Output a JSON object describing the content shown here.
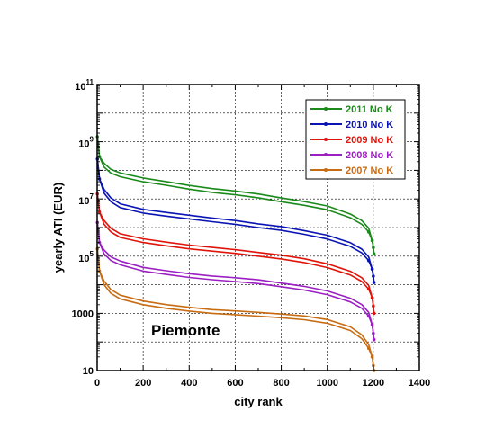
{
  "chart_data": {
    "type": "line",
    "title": "",
    "xlabel": "city  rank",
    "ylabel": "yearly  ATI  (EUR)",
    "xlim": [
      0,
      1400
    ],
    "ylim_log10": [
      1,
      11
    ],
    "yscale": "log",
    "grid": true,
    "legend_position": "top-right",
    "annotation": "Piemonte",
    "x_ticks": [
      "0",
      "200",
      "400",
      "600",
      "800",
      "1000",
      "1200",
      "1400"
    ],
    "y_ticks": [
      {
        "exp": 1,
        "label": "10"
      },
      {
        "exp": 3,
        "label": "1000"
      },
      {
        "exp": 5,
        "base": "10",
        "sup": "5"
      },
      {
        "exp": 7,
        "base": "10",
        "sup": "7"
      },
      {
        "exp": 9,
        "base": "10",
        "sup": "9"
      },
      {
        "exp": 11,
        "base": "10",
        "sup": "11"
      }
    ],
    "series": [
      {
        "name": "2011 No K",
        "color": "#1a8a1a",
        "x": [
          1,
          10,
          30,
          60,
          100,
          200,
          300,
          400,
          500,
          600,
          700,
          800,
          900,
          1000,
          1100,
          1150,
          1180,
          1195,
          1200,
          1203
        ],
        "y": [
          1500000000.0,
          300000000.0,
          130000000.0,
          80000000.0,
          60000000.0,
          40000000.0,
          30000000.0,
          22000000.0,
          17000000.0,
          14000000.0,
          11000000.0,
          8000000.0,
          6000000.0,
          4200000.0,
          2200000.0,
          1300000.0,
          700000.0,
          350000.0,
          200000.0,
          120000.0
        ]
      },
      {
        "name": "2010 No K",
        "color": "#0a14b4",
        "x": [
          1,
          10,
          30,
          60,
          100,
          200,
          300,
          400,
          500,
          600,
          700,
          800,
          900,
          1000,
          1100,
          1150,
          1180,
          1195,
          1200,
          1203
        ],
        "y": [
          250000000.0,
          50000000.0,
          16000000.0,
          8000000.0,
          5000000.0,
          3200000.0,
          2500000.0,
          2000000.0,
          1600000.0,
          1300000.0,
          1000000.0,
          800000.0,
          580000.0,
          400000.0,
          220000.0,
          130000.0,
          70000.0,
          35000.0,
          20000.0,
          12000.0
        ]
      },
      {
        "name": "2009 No K",
        "color": "#e0140a",
        "x": [
          1,
          10,
          30,
          60,
          100,
          200,
          300,
          400,
          500,
          600,
          700,
          800,
          900,
          1000,
          1100,
          1150,
          1180,
          1195,
          1200,
          1203
        ],
        "y": [
          15000000.0,
          3500000.0,
          1300000.0,
          700000.0,
          450000.0,
          300000.0,
          230000.0,
          180000.0,
          150000.0,
          125000.0,
          100000.0,
          80000.0,
          60000.0,
          40000.0,
          22000.0,
          13000.0,
          7000,
          3500,
          1800,
          1000
        ]
      },
      {
        "name": "2008 No K",
        "color": "#9b1fc2",
        "x": [
          1,
          10,
          30,
          60,
          100,
          200,
          300,
          400,
          500,
          600,
          700,
          800,
          900,
          1000,
          1100,
          1150,
          1180,
          1195,
          1200,
          1203
        ],
        "y": [
          1500000.0,
          300000.0,
          120000.0,
          70000.0,
          50000.0,
          30000.0,
          23000.0,
          18000.0,
          15000.0,
          13000.0,
          11000.0,
          8500,
          6500,
          4500,
          2500,
          1500,
          800,
          400,
          200,
          120
        ]
      },
      {
        "name": "2007 No K",
        "color": "#c86c14",
        "x": [
          1,
          10,
          30,
          60,
          100,
          200,
          300,
          400,
          500,
          600,
          700,
          800,
          900,
          1000,
          1100,
          1150,
          1180,
          1195,
          1200,
          1203
        ],
        "y": [
          180000.0,
          30000.0,
          10000.0,
          5000,
          3200,
          2000,
          1500,
          1200,
          1000,
          900,
          800,
          700,
          600,
          450,
          250,
          130,
          60,
          30,
          15,
          10
        ]
      }
    ]
  }
}
